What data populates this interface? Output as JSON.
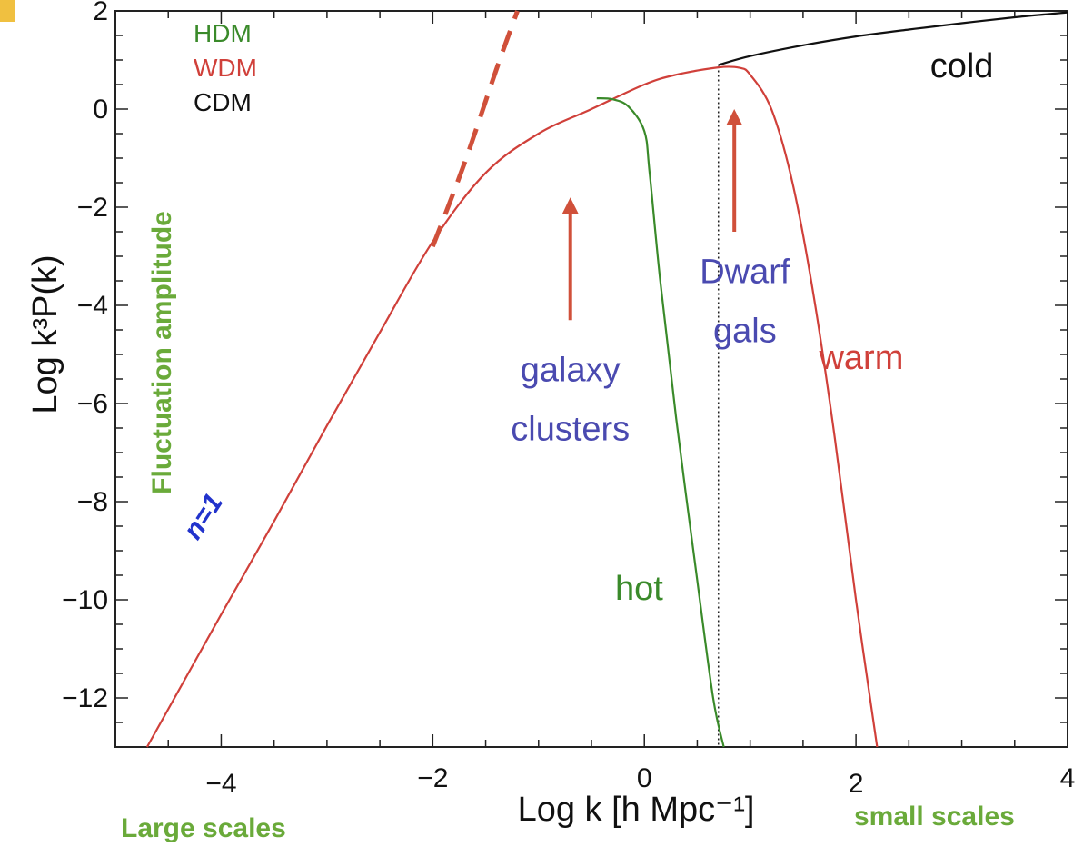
{
  "chart_data": {
    "type": "line",
    "xlabel": "Log k [h Mpc⁻¹]",
    "ylabel": "Log k³P(k)",
    "xlim": [
      -5,
      4
    ],
    "ylim": [
      -13,
      2
    ],
    "x_ticks": [
      {
        "value": -4,
        "label": "−4"
      },
      {
        "value": -2,
        "label": "−2"
      },
      {
        "value": 0,
        "label": "0"
      },
      {
        "value": 2,
        "label": "2"
      },
      {
        "value": 4,
        "label": "4"
      }
    ],
    "y_ticks": [
      {
        "value": 2,
        "label": "2"
      },
      {
        "value": 0,
        "label": "0"
      },
      {
        "value": -2,
        "label": "−2"
      },
      {
        "value": -4,
        "label": "−4"
      },
      {
        "value": -6,
        "label": "−6"
      },
      {
        "value": -8,
        "label": "−8"
      },
      {
        "value": -10,
        "label": "−10"
      },
      {
        "value": -12,
        "label": "−12"
      }
    ],
    "legend": {
      "placement": "top-left",
      "entries": [
        {
          "label": "HDM",
          "color": "#3a8a2a"
        },
        {
          "label": "WDM",
          "color": "#d0403a"
        },
        {
          "label": "CDM",
          "color": "#111111"
        }
      ]
    },
    "series": [
      {
        "name": "CDM",
        "color": "#111111",
        "x": [
          0.7,
          1.0,
          1.5,
          2.0,
          2.5,
          3.0,
          3.5,
          4.0
        ],
        "y": [
          0.9,
          1.08,
          1.3,
          1.48,
          1.62,
          1.75,
          1.87,
          1.97
        ]
      },
      {
        "name": "WDM",
        "color": "#d0403a",
        "x": [
          -4.7,
          -4.0,
          -3.5,
          -3.0,
          -2.5,
          -2.0,
          -1.5,
          -1.0,
          -0.5,
          0.0,
          0.3,
          0.7,
          0.9,
          1.0,
          1.2,
          1.4,
          1.6,
          1.8,
          2.0,
          2.2
        ],
        "y": [
          -13.0,
          -10.3,
          -8.4,
          -6.45,
          -4.55,
          -2.7,
          -1.3,
          -0.5,
          0.0,
          0.5,
          0.7,
          0.85,
          0.84,
          0.7,
          0.0,
          -1.5,
          -3.8,
          -6.7,
          -10.0,
          -13.0
        ]
      },
      {
        "name": "HDM",
        "color": "#3a8a2a",
        "x": [
          -0.45,
          -0.3,
          -0.15,
          0.0,
          0.05,
          0.15,
          0.3,
          0.5,
          0.65,
          0.75
        ],
        "y": [
          0.22,
          0.2,
          0.05,
          -0.45,
          -1.3,
          -3.5,
          -6.3,
          -9.6,
          -12.0,
          -13.0
        ]
      },
      {
        "name": "n=1",
        "color": "#d0503a",
        "style": "dashed",
        "x": [
          -2.0,
          -1.7,
          -1.4,
          -1.2
        ],
        "y": [
          -2.8,
          -1.1,
          0.8,
          2.0
        ]
      }
    ],
    "vertical_line": {
      "x": 0.7,
      "style": "dotted"
    },
    "arrows": [
      {
        "x": -0.7,
        "y_from": -4.3,
        "y_to": -1.8,
        "color": "#d0503a"
      },
      {
        "x": 0.85,
        "y_from": -2.5,
        "y_to": 0.0,
        "color": "#d0503a"
      }
    ],
    "annotations": [
      {
        "id": "cold",
        "text": "cold",
        "x": 3.0,
        "y": 0.65,
        "color": "#111111"
      },
      {
        "id": "warm",
        "text": "warm",
        "x": 2.05,
        "y": -5.3,
        "color": "#d0403a"
      },
      {
        "id": "hot",
        "text": "hot",
        "x": -0.05,
        "y": -10.0,
        "color": "#3a8a2a"
      },
      {
        "id": "dwarf1",
        "text": "Dwarf",
        "x": 0.95,
        "y": -3.55,
        "color": "#4a4ab0"
      },
      {
        "id": "dwarf2",
        "text": "gals",
        "x": 0.95,
        "y": -4.75,
        "color": "#4a4ab0"
      },
      {
        "id": "galaxy1",
        "text": "galaxy",
        "x": -0.7,
        "y": -5.55,
        "color": "#4a4ab0"
      },
      {
        "id": "galaxy2",
        "text": "clusters",
        "x": -0.7,
        "y": -6.75,
        "color": "#4a4ab0"
      },
      {
        "id": "n1",
        "text": "n=1",
        "x": -4.1,
        "y": -8.4,
        "color": "#2233cc"
      }
    ]
  },
  "side_labels": {
    "fluctuation": "Fluctuation amplitude",
    "large_scales": "Large scales",
    "small_scales": "small scales"
  }
}
